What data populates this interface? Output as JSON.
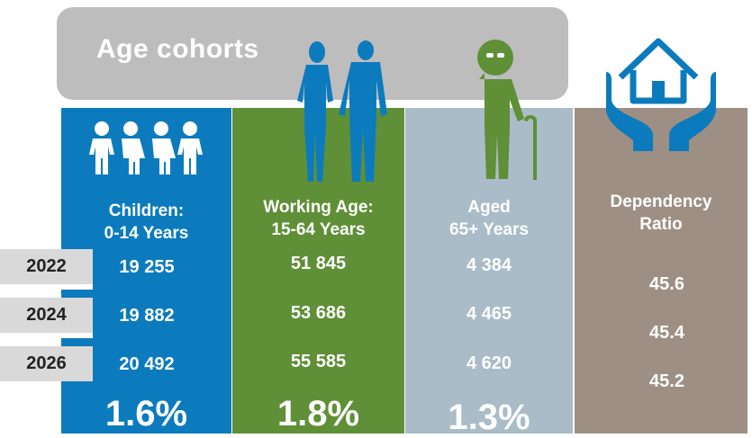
{
  "header": {
    "title": "Age cohorts"
  },
  "columns": {
    "children": {
      "label_line1": "Children:",
      "label_line2": "0-14 Years",
      "values": [
        "19 255",
        "19 882",
        "20 492"
      ],
      "growth": "1.6%",
      "icon": "children-icon",
      "color": "#0c7bbd"
    },
    "working": {
      "label_line1": "Working Age:",
      "label_line2": "15-64 Years",
      "values": [
        "51 845",
        "53 686",
        "55 585"
      ],
      "growth": "1.8%",
      "icon": "working-age-adults-icon",
      "color": "#5f8f36"
    },
    "aged": {
      "label_line1": "Aged",
      "label_line2": "65+ Years",
      "values": [
        "4 384",
        "4 465",
        "4 620"
      ],
      "growth": "1.3%",
      "icon": "elderly-person-icon",
      "color": "#a9bcc7"
    },
    "dependency": {
      "label_line1": "Dependency",
      "label_line2": "Ratio",
      "values": [
        "45.6",
        "45.4",
        "45.2"
      ],
      "icon": "house-in-hands-icon",
      "color": "#9e8f84"
    }
  },
  "years": [
    "2022",
    "2024",
    "2026"
  ]
}
